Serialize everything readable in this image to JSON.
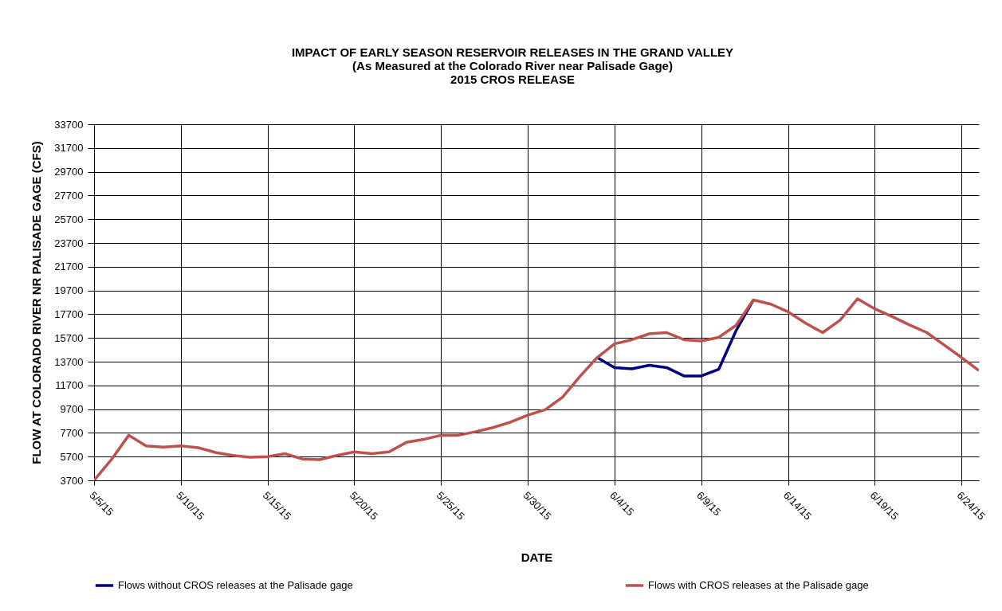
{
  "chart_data": {
    "type": "line",
    "title": "IMPACT OF EARLY SEASON RESERVOIR RELEASES IN THE GRAND VALLEY",
    "subtitle": "(As Measured at the Colorado River near Palisade Gage)\n2015 CROS RELEASE",
    "xlabel": "DATE",
    "ylabel": "FLOW AT COLORADO  RIVER NR PALISADE GAGE (CFS)",
    "x": [
      "2015-05-05",
      "2015-05-06",
      "2015-05-07",
      "2015-05-08",
      "2015-05-09",
      "2015-05-10",
      "2015-05-11",
      "2015-05-12",
      "2015-05-13",
      "2015-05-14",
      "2015-05-15",
      "2015-05-16",
      "2015-05-17",
      "2015-05-18",
      "2015-05-19",
      "2015-05-20",
      "2015-05-21",
      "2015-05-22",
      "2015-05-23",
      "2015-05-24",
      "2015-05-25",
      "2015-05-26",
      "2015-05-27",
      "2015-05-28",
      "2015-05-29",
      "2015-05-30",
      "2015-05-31",
      "2015-06-01",
      "2015-06-02",
      "2015-06-03",
      "2015-06-04",
      "2015-06-05",
      "2015-06-06",
      "2015-06-07",
      "2015-06-08",
      "2015-06-09",
      "2015-06-10",
      "2015-06-11",
      "2015-06-12",
      "2015-06-13",
      "2015-06-14",
      "2015-06-15",
      "2015-06-16",
      "2015-06-17",
      "2015-06-18",
      "2015-06-19",
      "2015-06-20",
      "2015-06-21",
      "2015-06-22",
      "2015-06-23",
      "2015-06-24",
      "2015-06-25"
    ],
    "series": [
      {
        "name": "Flows without CROS  releases at the Palisade gage",
        "color": "#000080",
        "values": [
          null,
          null,
          null,
          null,
          null,
          null,
          null,
          null,
          null,
          null,
          null,
          null,
          null,
          null,
          null,
          null,
          null,
          null,
          null,
          null,
          null,
          null,
          null,
          null,
          null,
          null,
          null,
          null,
          null,
          14050,
          13200,
          13100,
          13400,
          13200,
          12500,
          12500,
          13050,
          16300,
          18900,
          null,
          null,
          null,
          null,
          null,
          null,
          null,
          null,
          null,
          null,
          null,
          null,
          null
        ]
      },
      {
        "name": "Flows with CROS  releases at the Palisade gage",
        "color": "#c0504d",
        "values": [
          3700,
          5450,
          7500,
          6600,
          6500,
          6600,
          6450,
          6050,
          5800,
          5650,
          5700,
          5950,
          5500,
          5450,
          5800,
          6100,
          5950,
          6100,
          6900,
          7150,
          7500,
          7500,
          7800,
          8150,
          8600,
          9200,
          9650,
          10700,
          12450,
          14050,
          15200,
          15550,
          16050,
          16150,
          15550,
          15450,
          15750,
          16750,
          18900,
          18550,
          17900,
          16950,
          16150,
          17200,
          19000,
          18150,
          17500,
          16800,
          16150,
          15100,
          14050,
          12950
        ]
      }
    ],
    "xlim": [
      "2015-05-05",
      "2015-06-25"
    ],
    "xticks": [
      {
        "value": "2015-05-05",
        "label": "5/5/15"
      },
      {
        "value": "2015-05-10",
        "label": "5/10/15"
      },
      {
        "value": "2015-05-15",
        "label": "5/15/15"
      },
      {
        "value": "2015-05-20",
        "label": "5/20/15"
      },
      {
        "value": "2015-05-25",
        "label": "5/25/15"
      },
      {
        "value": "2015-05-30",
        "label": "5/30/15"
      },
      {
        "value": "2015-06-04",
        "label": "6/4/15"
      },
      {
        "value": "2015-06-09",
        "label": "6/9/15"
      },
      {
        "value": "2015-06-14",
        "label": "6/14/15"
      },
      {
        "value": "2015-06-19",
        "label": "6/19/15"
      },
      {
        "value": "2015-06-24",
        "label": "6/24/15"
      }
    ],
    "ylim": [
      3700,
      33700
    ],
    "yticks": [
      3700,
      5700,
      7700,
      9700,
      11700,
      13700,
      15700,
      17700,
      19700,
      21700,
      23700,
      25700,
      27700,
      29700,
      31700,
      33700
    ],
    "grid": true,
    "legend": "bottom"
  }
}
